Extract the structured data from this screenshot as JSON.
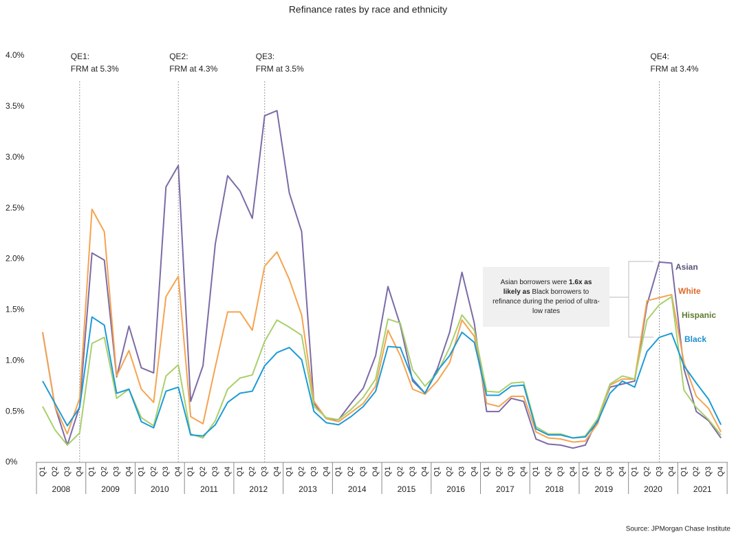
{
  "chart_data": {
    "type": "line",
    "title": "Refinance rates by race and ethnicity",
    "source": "Source: JPMorgan Chase Institute",
    "categories": [
      "Q1",
      "Q2",
      "Q3",
      "Q4",
      "Q1",
      "Q2",
      "Q3",
      "Q4",
      "Q1",
      "Q2",
      "Q3",
      "Q4",
      "Q1",
      "Q2",
      "Q3",
      "Q4",
      "Q1",
      "Q2",
      "Q3",
      "Q4",
      "Q1",
      "Q2",
      "Q3",
      "Q4",
      "Q1",
      "Q2",
      "Q3",
      "Q4",
      "Q1",
      "Q2",
      "Q3",
      "Q4",
      "Q1",
      "Q2",
      "Q3",
      "Q4",
      "Q1",
      "Q2",
      "Q3",
      "Q4",
      "Q1",
      "Q2",
      "Q3",
      "Q4",
      "Q1",
      "Q2",
      "Q3",
      "Q4",
      "Q1",
      "Q2",
      "Q3",
      "Q4",
      "Q1",
      "Q2",
      "Q3",
      "Q4"
    ],
    "years": [
      "2008",
      "2009",
      "2010",
      "2011",
      "2012",
      "2013",
      "2014",
      "2015",
      "2016",
      "2017",
      "2018",
      "2019",
      "2020",
      "2021"
    ],
    "ylim": [
      0,
      4
    ],
    "yticks": [
      {
        "value": 0,
        "label": "0%"
      },
      {
        "value": 0.5,
        "label": "0.5%"
      },
      {
        "value": 1,
        "label": "1.0%"
      },
      {
        "value": 1.5,
        "label": "1.5%"
      },
      {
        "value": 2,
        "label": "2.0%"
      },
      {
        "value": 2.5,
        "label": "2.5%"
      },
      {
        "value": 3,
        "label": "3.0%"
      },
      {
        "value": 3.5,
        "label": "3.5%"
      },
      {
        "value": 4,
        "label": "4.0%"
      }
    ],
    "grid": false,
    "series": [
      {
        "name": "Asian",
        "color": "#7b6aa6",
        "label_color": "#55537a",
        "values": [
          1.28,
          0.55,
          0.17,
          0.55,
          2.06,
          1.99,
          0.84,
          1.34,
          0.93,
          0.88,
          2.71,
          2.92,
          0.6,
          0.95,
          2.15,
          2.82,
          2.67,
          2.4,
          3.41,
          3.46,
          2.65,
          2.27,
          0.58,
          0.43,
          0.42,
          0.58,
          0.73,
          1.05,
          1.73,
          1.35,
          0.8,
          0.68,
          0.92,
          1.28,
          1.87,
          1.37,
          0.5,
          0.5,
          0.63,
          0.6,
          0.23,
          0.18,
          0.17,
          0.14,
          0.17,
          0.42,
          0.74,
          0.77,
          0.8,
          1.55,
          1.97,
          1.96,
          0.92,
          0.5,
          0.41,
          0.24
        ]
      },
      {
        "name": "White",
        "color": "#f5a34f",
        "label_color": "#e0682a",
        "values": [
          1.28,
          0.55,
          0.28,
          0.63,
          2.49,
          2.27,
          0.85,
          1.1,
          0.72,
          0.59,
          1.63,
          1.83,
          0.45,
          0.38,
          0.94,
          1.48,
          1.48,
          1.3,
          1.93,
          2.07,
          1.8,
          1.45,
          0.6,
          0.43,
          0.4,
          0.49,
          0.58,
          0.75,
          1.3,
          1.05,
          0.72,
          0.67,
          0.8,
          0.98,
          1.4,
          1.24,
          0.58,
          0.55,
          0.65,
          0.65,
          0.3,
          0.24,
          0.23,
          0.2,
          0.21,
          0.38,
          0.76,
          0.82,
          0.82,
          1.59,
          1.62,
          1.65,
          0.98,
          0.65,
          0.53,
          0.3
        ]
      },
      {
        "name": "Hispanic",
        "color": "#a9cf6b",
        "label_color": "#5d7a2c",
        "values": [
          0.55,
          0.32,
          0.17,
          0.29,
          1.17,
          1.23,
          0.63,
          0.72,
          0.44,
          0.36,
          0.85,
          0.96,
          0.28,
          0.24,
          0.41,
          0.72,
          0.83,
          0.86,
          1.19,
          1.4,
          1.33,
          1.25,
          0.55,
          0.44,
          0.42,
          0.52,
          0.64,
          0.82,
          1.41,
          1.37,
          0.91,
          0.75,
          0.88,
          1.13,
          1.45,
          1.3,
          0.7,
          0.69,
          0.78,
          0.79,
          0.35,
          0.28,
          0.28,
          0.24,
          0.26,
          0.43,
          0.77,
          0.85,
          0.82,
          1.4,
          1.55,
          1.63,
          0.71,
          0.54,
          0.42,
          0.27
        ]
      },
      {
        "name": "Black",
        "color": "#1b9ad6",
        "label_color": "#1b8fcf",
        "values": [
          0.8,
          0.58,
          0.36,
          0.54,
          1.43,
          1.35,
          0.68,
          0.72,
          0.4,
          0.34,
          0.7,
          0.74,
          0.27,
          0.26,
          0.37,
          0.59,
          0.68,
          0.7,
          0.95,
          1.08,
          1.13,
          1.01,
          0.5,
          0.39,
          0.37,
          0.45,
          0.55,
          0.7,
          1.14,
          1.13,
          0.82,
          0.68,
          0.9,
          1.05,
          1.28,
          1.18,
          0.66,
          0.66,
          0.75,
          0.76,
          0.33,
          0.27,
          0.27,
          0.24,
          0.25,
          0.4,
          0.68,
          0.8,
          0.74,
          1.09,
          1.23,
          1.27,
          0.95,
          0.78,
          0.62,
          0.37
        ]
      }
    ],
    "annotations": [
      {
        "title": "QE1:",
        "text": "FRM at 5.3%"
      },
      {
        "title": "QE2:",
        "text": "FRM at 4.3%"
      },
      {
        "title": "QE3:",
        "text": "FRM at 3.5%"
      },
      {
        "title": "QE4:",
        "text": "FRM at 3.4%"
      }
    ],
    "callout": [
      "Asian borrowers were ",
      "1.6x as likely as",
      " Black borrowers to refinance during the period of ultra-low rates"
    ]
  }
}
